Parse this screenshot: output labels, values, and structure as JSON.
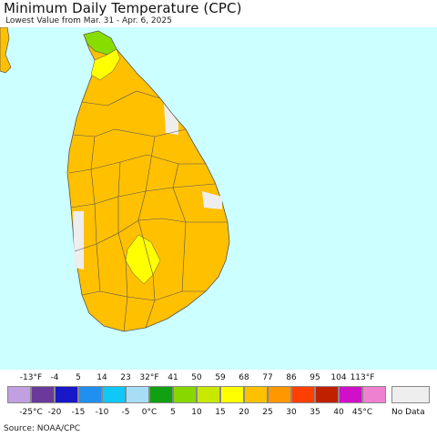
{
  "title": "Minimum Daily Temperature (CPC)",
  "subtitle": "Lowest Value from Mar. 31 - Apr. 6, 2025",
  "source": "Source: NOAA/CPC",
  "colors": {
    "ocean": "#ccffff",
    "land_main": "#ffc000",
    "land_warm_spot": "#ffff00",
    "land_cool": "#c8e000",
    "land_cooler": "#88dd00",
    "no_data": "#eeeeee",
    "boundary": "#555555"
  },
  "legend": {
    "fahrenheit_labels": [
      "-13°F",
      "-4",
      "5",
      "14",
      "23",
      "32°F",
      "41",
      "50",
      "59",
      "68",
      "77",
      "86",
      "95",
      "104",
      "113°F"
    ],
    "celsius_labels": [
      "-25°C",
      "-20",
      "-15",
      "-10",
      "-5",
      "0°C",
      "5",
      "10",
      "15",
      "20",
      "25",
      "30",
      "35",
      "40",
      "45°C"
    ],
    "swatch_colors": [
      "#c0a0e0",
      "#6a3a9a",
      "#1818c8",
      "#2090f0",
      "#10c8f8",
      "#a8ddf8",
      "#10a010",
      "#88d800",
      "#c8e800",
      "#ffff00",
      "#ffc000",
      "#ff9800",
      "#ff4000",
      "#c02000",
      "#d010c8",
      "#f080d0"
    ],
    "no_data_label": "No Data"
  }
}
